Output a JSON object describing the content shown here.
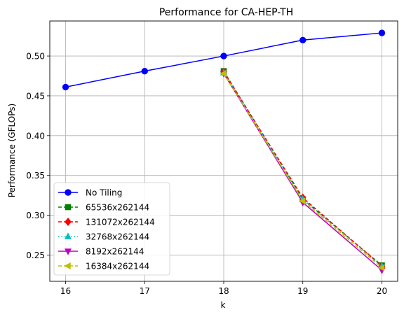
{
  "chart_data": {
    "type": "line",
    "title": "Performance for CA-HEP-TH",
    "xlabel": "k",
    "ylabel": "Performance (GFLOPs)",
    "xlim": [
      15.8,
      20.2
    ],
    "ylim": [
      0.217,
      0.544
    ],
    "xticks": [
      16,
      17,
      18,
      19,
      20
    ],
    "yticks": [
      0.25,
      0.3,
      0.35,
      0.4,
      0.45,
      0.5
    ],
    "ytick_labels": [
      "0.25",
      "0.30",
      "0.35",
      "0.40",
      "0.45",
      "0.50"
    ],
    "grid": true,
    "legend_position": "lower-left",
    "series": [
      {
        "name": "No Tiling",
        "x": [
          16,
          17,
          18,
          19,
          20
        ],
        "values": [
          0.461,
          0.481,
          0.5,
          0.52,
          0.529
        ],
        "color": "#0000ff",
        "marker": "circle",
        "dash": ""
      },
      {
        "name": "65536x262144",
        "x": [
          18,
          19,
          20
        ],
        "values": [
          0.481,
          0.32,
          0.237
        ],
        "color": "#008000",
        "marker": "square",
        "dash": "5,3"
      },
      {
        "name": "131072x262144",
        "x": [
          18,
          19,
          20
        ],
        "values": [
          0.48,
          0.322,
          0.236
        ],
        "color": "#ff0000",
        "marker": "diamond",
        "dash": "5,3"
      },
      {
        "name": "32768x262144",
        "x": [
          18,
          19,
          20
        ],
        "values": [
          0.479,
          0.32,
          0.236
        ],
        "color": "#00bfbf",
        "marker": "triangle-up",
        "dash": "1.5,3"
      },
      {
        "name": "8192x262144",
        "x": [
          18,
          19,
          20
        ],
        "values": [
          0.478,
          0.316,
          0.231
        ],
        "color": "#bf00bf",
        "marker": "triangle-down",
        "dash": ""
      },
      {
        "name": "16384x262144",
        "x": [
          18,
          19,
          20
        ],
        "values": [
          0.478,
          0.318,
          0.234
        ],
        "color": "#bfbf00",
        "marker": "triangle-left",
        "dash": "5,3"
      }
    ]
  }
}
